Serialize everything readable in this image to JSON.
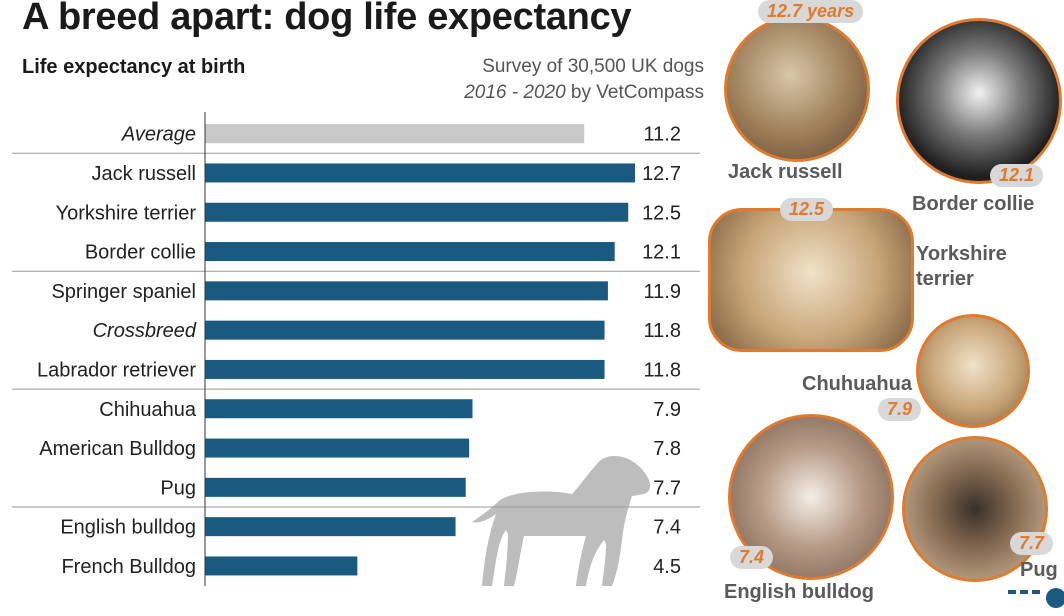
{
  "title": "A breed apart: dog life expectancy",
  "subtitle": "Life expectancy at birth",
  "source_line1": "Survey of 30,500 UK dogs",
  "source_years": "2016 - 2020",
  "source_by": "by VetCompass",
  "colors": {
    "bar": "#1a5a80",
    "average_bar": "#c8c8c8",
    "accent": "#e07a2e",
    "silhouette": "#bdbdbd"
  },
  "chart_data": {
    "type": "bar",
    "orientation": "horizontal",
    "categories": [
      "Average",
      "Jack russell",
      "Yorkshire terrier",
      "Border collie",
      "Springer spaniel",
      "Crossbreed",
      "Labrador retriever",
      "Chihuahua",
      "American Bulldog",
      "Pug",
      "English bulldog",
      "French Bulldog"
    ],
    "values": [
      11.2,
      12.7,
      12.5,
      12.1,
      11.9,
      11.8,
      11.8,
      7.9,
      7.8,
      7.7,
      7.4,
      4.5
    ],
    "value_labels": [
      "11.2",
      "12.7",
      "12.5",
      "12.1",
      "11.9",
      "11.8",
      "11.8",
      "7.9",
      "7.8",
      "7.7",
      "7.4",
      "4.5"
    ],
    "italic_categories": [
      "Average",
      "Crossbreed"
    ],
    "highlight_category": "Average",
    "group_separators_after": [
      "Average",
      "Border collie",
      "Labrador retriever",
      "Pug"
    ],
    "xlim": [
      0,
      12.7
    ],
    "grid": false,
    "legend": "none"
  },
  "photos": [
    {
      "name": "Jack russell",
      "value": "12.7 years"
    },
    {
      "name": "Border collie",
      "value": "12.1"
    },
    {
      "name": "Yorkshire terrier",
      "name_line1": "Yorkshire",
      "name_line2": "terrier",
      "value": "12.5"
    },
    {
      "name": "Chuhuahua",
      "value": "7.9"
    },
    {
      "name": "English bulldog",
      "value": "7.4"
    },
    {
      "name": "Pug",
      "value": "7.7"
    }
  ],
  "icons": {
    "silhouette": "dog-silhouette-icon",
    "logo": "afp-logo-icon"
  }
}
